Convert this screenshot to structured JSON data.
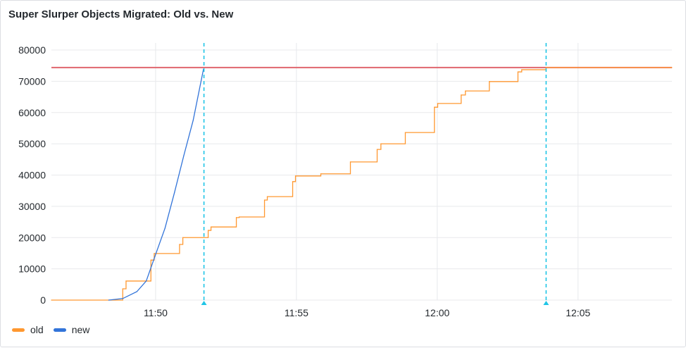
{
  "chart_data": {
    "type": "line",
    "title": "Super Slurper Objects Migrated: Old vs. New",
    "xlabel": "",
    "ylabel": "",
    "xlim": [
      "11:46:18",
      "12:08:20"
    ],
    "ylim": [
      0,
      80000
    ],
    "y_ticks": [
      "0",
      "10000",
      "20000",
      "30000",
      "40000",
      "50000",
      "60000",
      "70000",
      "80000"
    ],
    "x_ticks": [
      "11:50",
      "11:55",
      "12:00",
      "12:05"
    ],
    "grid": true,
    "legend_placement": "bottom-left",
    "threshold": {
      "value": 74400,
      "color": "#E0666E"
    },
    "annotations": [
      {
        "time": "11:51:43",
        "color": "#1FC5E6"
      },
      {
        "time": "12:03:52",
        "color": "#1FC5E6"
      }
    ],
    "series": [
      {
        "name": "old",
        "color": "#FF9830",
        "step": true,
        "x": [
          "11:46:18",
          "11:48:50",
          "11:48:57",
          "11:49:50",
          "11:49:57",
          "11:50:51",
          "11:50:58",
          "11:51:52",
          "11:51:58",
          "11:52:52",
          "11:52:58",
          "11:53:52",
          "11:53:58",
          "11:54:52",
          "11:54:58",
          "11:55:52",
          "11:56:55",
          "11:57:52",
          "11:58:00",
          "11:58:52",
          "11:59:54",
          "12:00:01",
          "12:00:51",
          "12:01:00",
          "12:01:51",
          "12:02:52",
          "12:03:00",
          "12:03:52",
          "12:08:20"
        ],
        "values": [
          0,
          3600,
          6100,
          12800,
          14900,
          17800,
          20000,
          22300,
          23400,
          26400,
          26600,
          32000,
          33100,
          37900,
          39700,
          40400,
          44200,
          48200,
          50000,
          53600,
          61700,
          62900,
          65600,
          66900,
          69900,
          73000,
          73700,
          74400,
          74400
        ]
      },
      {
        "name": "new",
        "color": "#3274D9",
        "step": false,
        "x": [
          "11:48:20",
          "11:48:50",
          "11:49:20",
          "11:49:40",
          "11:50:00",
          "11:50:20",
          "11:50:40",
          "11:51:00",
          "11:51:20",
          "11:51:42"
        ],
        "values": [
          0,
          500,
          2700,
          6100,
          14600,
          23000,
          34300,
          46200,
          57500,
          73900
        ]
      }
    ]
  }
}
